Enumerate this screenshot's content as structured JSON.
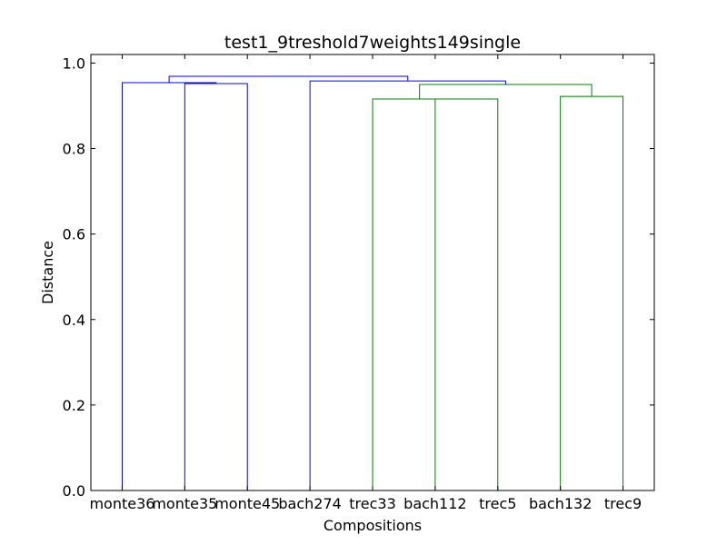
{
  "chart_data": {
    "type": "dendrogram",
    "title": "test1_9treshold7weights149single",
    "xlabel": "Compositions",
    "ylabel": "Distance",
    "ylim": [
      0,
      1.02
    ],
    "yticks": [
      "0.0",
      "0.2",
      "0.4",
      "0.6",
      "0.8",
      "1.0"
    ],
    "ytick_values": [
      0.0,
      0.2,
      0.4,
      0.6,
      0.8,
      1.0
    ],
    "leaves": [
      "monte36",
      "monte35",
      "monte45",
      "bach274",
      "trec33",
      "bach112",
      "trec5",
      "bach132",
      "trec9"
    ],
    "links": [
      {
        "left_leaf": 1,
        "right_leaf": 2,
        "height": 0.952,
        "color": "#0000ff"
      },
      {
        "left_leaf": 0,
        "right_cluster": 0,
        "height": 0.954,
        "color": "#0000ff"
      },
      {
        "left_leaf": 5,
        "right_leaf": 6,
        "height": 0.916,
        "color": "#008000"
      },
      {
        "left_leaf": 4,
        "right_cluster": 2,
        "height": 0.916,
        "color": "#008000"
      },
      {
        "left_leaf": 7,
        "right_leaf": 8,
        "height": 0.922,
        "color": "#008000"
      },
      {
        "left_cluster": 3,
        "right_cluster": 4,
        "height": 0.95,
        "color": "#008000"
      },
      {
        "left_leaf": 3,
        "right_cluster": 5,
        "height": 0.958,
        "color": "#0000ff"
      },
      {
        "left_cluster": 1,
        "right_cluster": 6,
        "height": 0.969,
        "color": "#0000ff"
      }
    ]
  }
}
